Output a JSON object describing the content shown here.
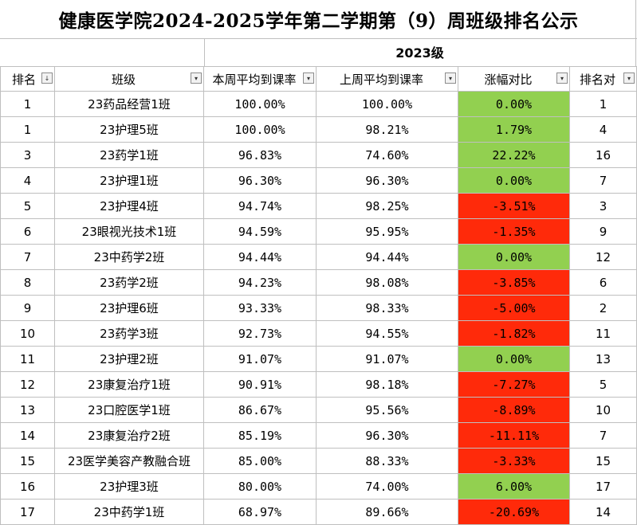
{
  "title": "健康医学院2024-2025学年第二学期第（9）周班级排名公示",
  "grade": "2023级",
  "headers": {
    "rank": "排名",
    "class": "班级",
    "this_week": "本周平均到课率",
    "last_week": "上周平均到课率",
    "change": "涨幅对比",
    "rank_compare": "排名对"
  },
  "icons": {
    "sort_filter": "↓",
    "dropdown": "▾"
  },
  "colors": {
    "increase": "#92d050",
    "decrease": "#ff2a0a"
  },
  "rows": [
    {
      "rank": "1",
      "class": "23药品经营1班",
      "this_week": "100.00%",
      "last_week": "100.00%",
      "change": "0.00%",
      "trend": "pos",
      "prev_rank": "1"
    },
    {
      "rank": "1",
      "class": "23护理5班",
      "this_week": "100.00%",
      "last_week": "98.21%",
      "change": "1.79%",
      "trend": "pos",
      "prev_rank": "4"
    },
    {
      "rank": "3",
      "class": "23药学1班",
      "this_week": "96.83%",
      "last_week": "74.60%",
      "change": "22.22%",
      "trend": "pos",
      "prev_rank": "16"
    },
    {
      "rank": "4",
      "class": "23护理1班",
      "this_week": "96.30%",
      "last_week": "96.30%",
      "change": "0.00%",
      "trend": "pos",
      "prev_rank": "7"
    },
    {
      "rank": "5",
      "class": "23护理4班",
      "this_week": "94.74%",
      "last_week": "98.25%",
      "change": "-3.51%",
      "trend": "neg",
      "prev_rank": "3"
    },
    {
      "rank": "6",
      "class": "23眼视光技术1班",
      "this_week": "94.59%",
      "last_week": "95.95%",
      "change": "-1.35%",
      "trend": "neg",
      "prev_rank": "9"
    },
    {
      "rank": "7",
      "class": "23中药学2班",
      "this_week": "94.44%",
      "last_week": "94.44%",
      "change": "0.00%",
      "trend": "pos",
      "prev_rank": "12"
    },
    {
      "rank": "8",
      "class": "23药学2班",
      "this_week": "94.23%",
      "last_week": "98.08%",
      "change": "-3.85%",
      "trend": "neg",
      "prev_rank": "6"
    },
    {
      "rank": "9",
      "class": "23护理6班",
      "this_week": "93.33%",
      "last_week": "98.33%",
      "change": "-5.00%",
      "trend": "neg",
      "prev_rank": "2"
    },
    {
      "rank": "10",
      "class": "23药学3班",
      "this_week": "92.73%",
      "last_week": "94.55%",
      "change": "-1.82%",
      "trend": "neg",
      "prev_rank": "11"
    },
    {
      "rank": "11",
      "class": "23护理2班",
      "this_week": "91.07%",
      "last_week": "91.07%",
      "change": "0.00%",
      "trend": "pos",
      "prev_rank": "13"
    },
    {
      "rank": "12",
      "class": "23康复治疗1班",
      "this_week": "90.91%",
      "last_week": "98.18%",
      "change": "-7.27%",
      "trend": "neg",
      "prev_rank": "5"
    },
    {
      "rank": "13",
      "class": "23口腔医学1班",
      "this_week": "86.67%",
      "last_week": "95.56%",
      "change": "-8.89%",
      "trend": "neg",
      "prev_rank": "10"
    },
    {
      "rank": "14",
      "class": "23康复治疗2班",
      "this_week": "85.19%",
      "last_week": "96.30%",
      "change": "-11.11%",
      "trend": "neg",
      "prev_rank": "7"
    },
    {
      "rank": "15",
      "class": "23医学美容产教融合班",
      "this_week": "85.00%",
      "last_week": "88.33%",
      "change": "-3.33%",
      "trend": "neg",
      "prev_rank": "15"
    },
    {
      "rank": "16",
      "class": "23护理3班",
      "this_week": "80.00%",
      "last_week": "74.00%",
      "change": "6.00%",
      "trend": "pos",
      "prev_rank": "17"
    },
    {
      "rank": "17",
      "class": "23中药学1班",
      "this_week": "68.97%",
      "last_week": "89.66%",
      "change": "-20.69%",
      "trend": "neg",
      "prev_rank": "14"
    }
  ]
}
